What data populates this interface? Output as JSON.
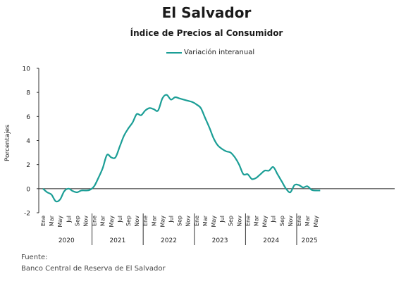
{
  "chart_data": {
    "type": "line",
    "title": "El Salvador",
    "subtitle": "Índice de Precios al Consumidor",
    "ylabel": "Porcentajes",
    "ylim": [
      -2,
      10
    ],
    "yticks": [
      -2,
      0,
      2,
      4,
      6,
      8,
      10
    ],
    "grid": false,
    "legend_position": "top-center",
    "month_labels": [
      "Ene",
      "Mar",
      "May",
      "Jul",
      "Sep",
      "Nov"
    ],
    "month_labels_2025": [
      "Ene",
      "Mar",
      "May"
    ],
    "years": [
      "2020",
      "2021",
      "2022",
      "2023",
      "2024",
      "2025"
    ],
    "series": [
      {
        "name": "Variación interanual",
        "color": "#1b9e96",
        "x": [
          "2020-01",
          "2020-02",
          "2020-03",
          "2020-04",
          "2020-05",
          "2020-06",
          "2020-07",
          "2020-08",
          "2020-09",
          "2020-10",
          "2020-11",
          "2020-12",
          "2021-01",
          "2021-02",
          "2021-03",
          "2021-04",
          "2021-05",
          "2021-06",
          "2021-07",
          "2021-08",
          "2021-09",
          "2021-10",
          "2021-11",
          "2021-12",
          "2022-01",
          "2022-02",
          "2022-03",
          "2022-04",
          "2022-05",
          "2022-06",
          "2022-07",
          "2022-08",
          "2022-09",
          "2022-10",
          "2022-11",
          "2022-12",
          "2023-01",
          "2023-02",
          "2023-03",
          "2023-04",
          "2023-05",
          "2023-06",
          "2023-07",
          "2023-08",
          "2023-09",
          "2023-10",
          "2023-11",
          "2023-12",
          "2024-01",
          "2024-02",
          "2024-03",
          "2024-04",
          "2024-05",
          "2024-06",
          "2024-07",
          "2024-08",
          "2024-09",
          "2024-10",
          "2024-11",
          "2024-12",
          "2025-01",
          "2025-02",
          "2025-03",
          "2025-04",
          "2025-05",
          "2025-06"
        ],
        "values": [
          0.0,
          -0.3,
          -0.5,
          -1.05,
          -0.9,
          -0.2,
          0.0,
          -0.2,
          -0.3,
          -0.15,
          -0.15,
          -0.1,
          0.2,
          0.9,
          1.7,
          2.8,
          2.6,
          2.6,
          3.5,
          4.4,
          5.0,
          5.5,
          6.2,
          6.1,
          6.5,
          6.7,
          6.6,
          6.5,
          7.5,
          7.8,
          7.4,
          7.6,
          7.5,
          7.4,
          7.3,
          7.2,
          7.0,
          6.7,
          5.9,
          5.1,
          4.2,
          3.6,
          3.3,
          3.1,
          3.0,
          2.6,
          2.0,
          1.2,
          1.2,
          0.8,
          0.9,
          1.2,
          1.5,
          1.5,
          1.8,
          1.2,
          0.6,
          0.0,
          -0.3,
          0.3,
          0.3,
          0.1,
          0.2,
          -0.1,
          -0.15,
          -0.15
        ]
      }
    ]
  },
  "source": {
    "label": "Fuente:",
    "text": "Banco Central de Reserva de El Salvador"
  }
}
